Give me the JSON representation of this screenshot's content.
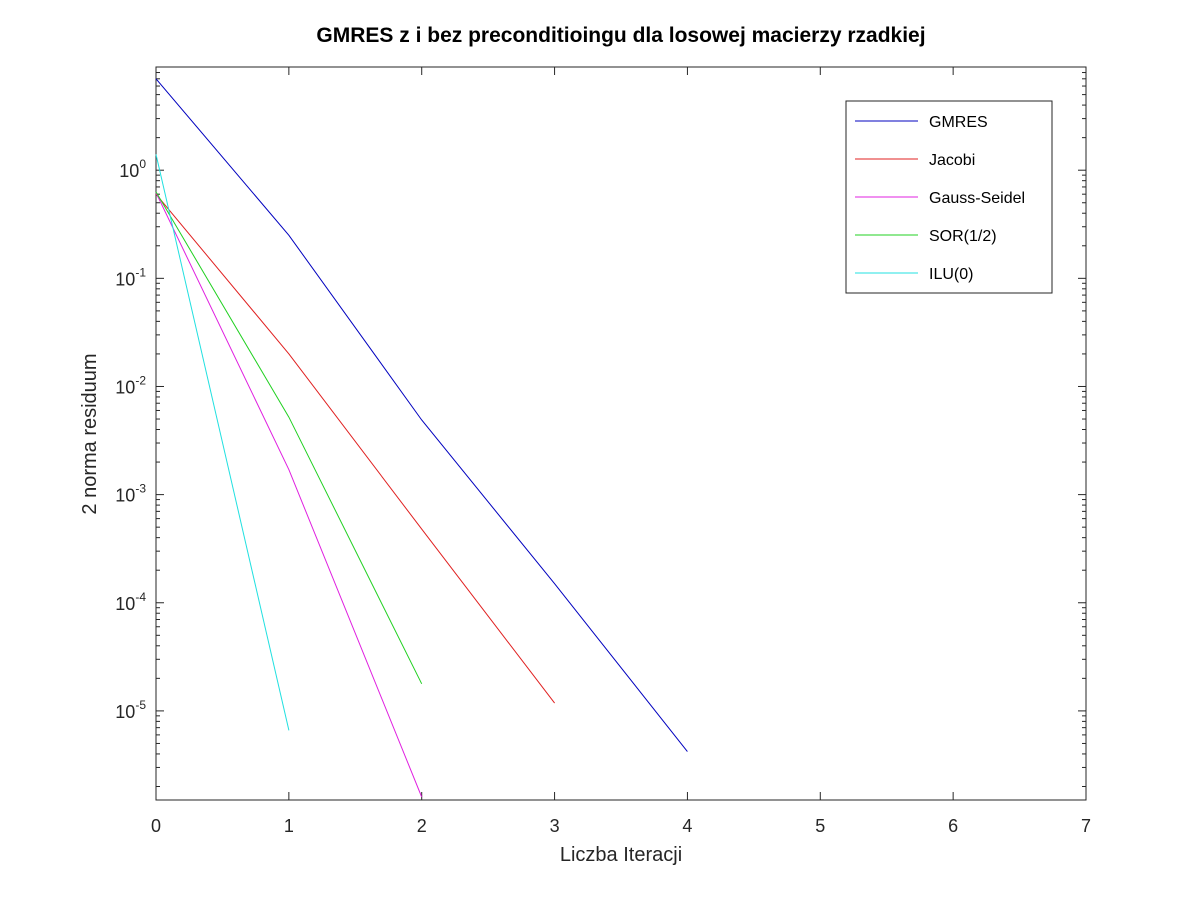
{
  "chart_data": {
    "type": "line",
    "title": "GMRES z i bez preconditioingu dla losowej macierzy rzadkiej",
    "xlabel": "Liczba Iteracji",
    "ylabel": "2 norma residuum",
    "xlim": [
      0,
      7
    ],
    "ylim": [
      1.5e-06,
      9
    ],
    "yscale": "log",
    "grid": false,
    "legend_position": "top-right",
    "x_ticks": [
      "0",
      "1",
      "2",
      "3",
      "4",
      "5",
      "6",
      "7"
    ],
    "y_ticks": [
      {
        "value": 1e-05,
        "base": "10",
        "exp": "-5"
      },
      {
        "value": 0.0001,
        "base": "10",
        "exp": "-4"
      },
      {
        "value": 0.001,
        "base": "10",
        "exp": "-3"
      },
      {
        "value": 0.01,
        "base": "10",
        "exp": "-2"
      },
      {
        "value": 0.1,
        "base": "10",
        "exp": "-1"
      },
      {
        "value": 1,
        "base": "10",
        "exp": "0"
      }
    ],
    "series": [
      {
        "name": "GMRES",
        "color": "#0000bf",
        "x": [
          0,
          1,
          2,
          3,
          4
        ],
        "y": [
          7.0,
          0.25,
          0.0049,
          0.00015,
          4.2e-06
        ]
      },
      {
        "name": "Jacobi",
        "color": "#e02020",
        "x": [
          0,
          1,
          2,
          3
        ],
        "y": [
          0.6,
          0.02,
          0.00048,
          1.18e-05
        ]
      },
      {
        "name": "Gauss-Seidel",
        "color": "#e020e0",
        "x": [
          0,
          1,
          2
        ],
        "y": [
          0.62,
          0.0017,
          1.6e-06
        ]
      },
      {
        "name": "SOR(1/2)",
        "color": "#20d020",
        "x": [
          0,
          1,
          2
        ],
        "y": [
          0.63,
          0.0052,
          1.78e-05
        ]
      },
      {
        "name": "ILU(0)",
        "color": "#20e0e0",
        "x": [
          0,
          1
        ],
        "y": [
          1.4,
          6.6e-06
        ]
      }
    ]
  }
}
